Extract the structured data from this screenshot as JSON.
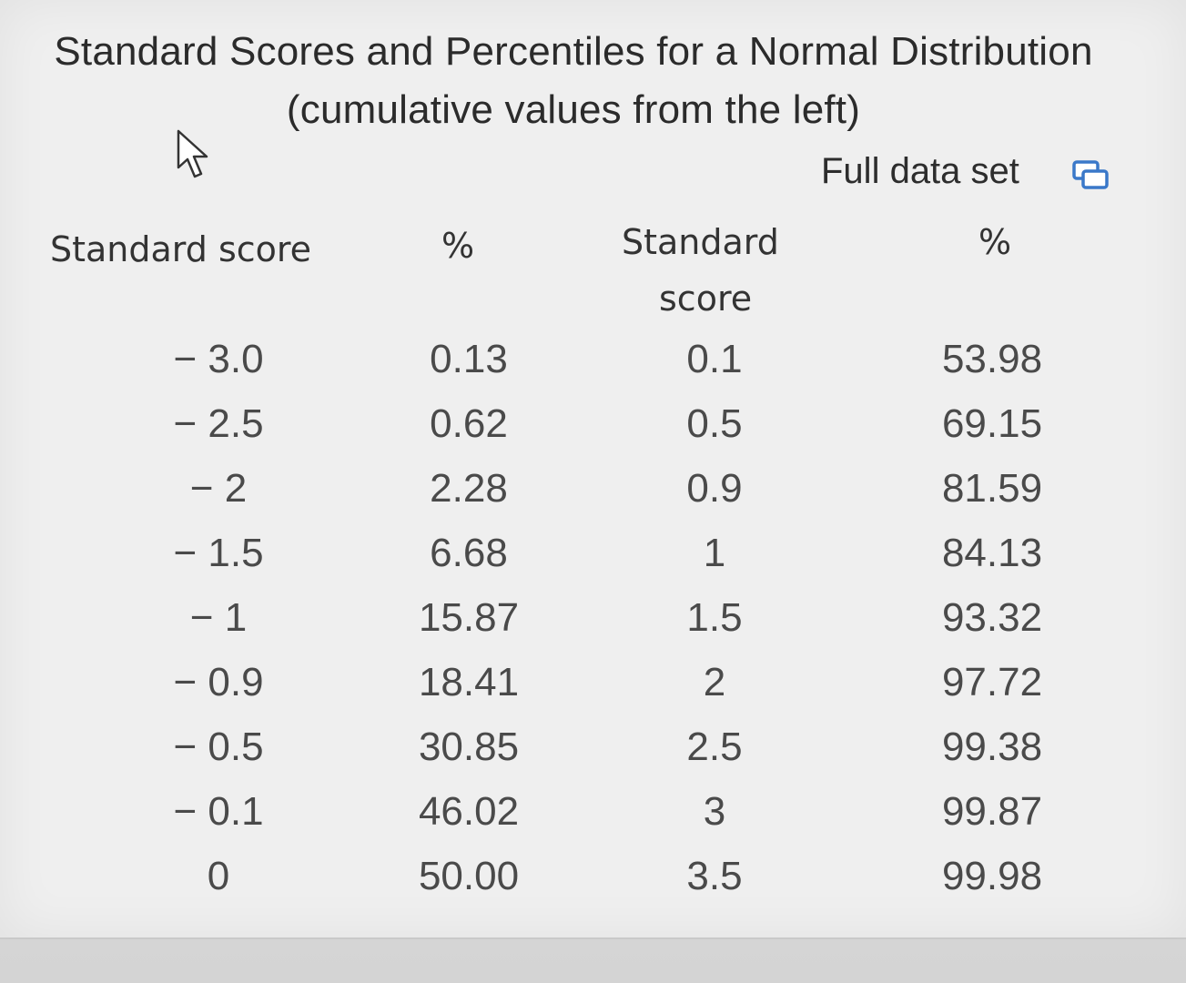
{
  "title": {
    "line1": "Standard Scores and Percentiles for a Normal Distribution",
    "line2": "(cumulative values from the left)"
  },
  "full_data_set": {
    "label": "Full data set",
    "icon": "copy-icon"
  },
  "cursor_icon": "arrow-cursor-icon",
  "headers": {
    "standard_score_1": "Standard score",
    "percent_1": "%",
    "standard_score_2_line1": "Standard",
    "standard_score_2_line2": "score",
    "percent_2": "%"
  },
  "rows": [
    {
      "z1": "− 3.0",
      "p1": "0.13",
      "z2": "0.1",
      "p2": "53.98"
    },
    {
      "z1": "− 2.5",
      "p1": "0.62",
      "z2": "0.5",
      "p2": "69.15"
    },
    {
      "z1": "− 2",
      "p1": "2.28",
      "z2": "0.9",
      "p2": "81.59"
    },
    {
      "z1": "− 1.5",
      "p1": "6.68",
      "z2": "1",
      "p2": "84.13"
    },
    {
      "z1": "− 1",
      "p1": "15.87",
      "z2": "1.5",
      "p2": "93.32"
    },
    {
      "z1": "− 0.9",
      "p1": "18.41",
      "z2": "2",
      "p2": "97.72"
    },
    {
      "z1": "− 0.5",
      "p1": "30.85",
      "z2": "2.5",
      "p2": "99.38"
    },
    {
      "z1": "− 0.1",
      "p1": "46.02",
      "z2": "3",
      "p2": "99.87"
    },
    {
      "z1": "0",
      "p1": "50.00",
      "z2": "3.5",
      "p2": "99.98"
    }
  ]
}
